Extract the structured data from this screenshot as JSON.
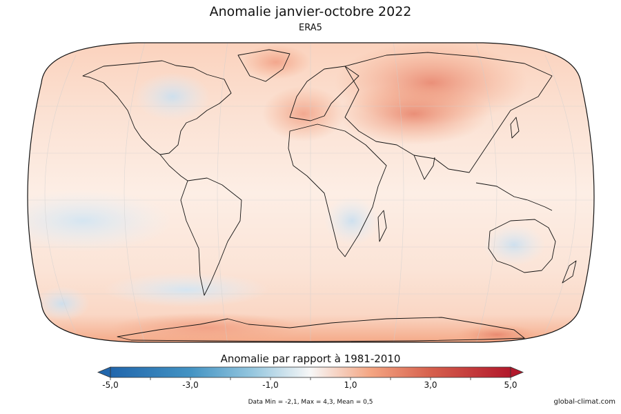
{
  "title": "Anomalie janvier-octobre 2022",
  "subtitle": "ERA5",
  "colorbar": {
    "title": "Anomalie par rapport à 1981-2010",
    "ticks": [
      "-5,0",
      "-3,0",
      "-1,0",
      "1,0",
      "3,0",
      "5,0"
    ],
    "min": -5,
    "max": 5,
    "colors": {
      "strong_cold": "#2166ac",
      "cold": "#6aaed6",
      "neutral": "#f7f7f7",
      "warm": "#f4a582",
      "strong_warm": "#b2182b"
    }
  },
  "stats": "Data Min = -2,1, Max = 4,3, Mean = 0,5",
  "credit": "global-climat.com",
  "map": {
    "projection": "robinson",
    "grid": true,
    "background_tint": "#fde5d8"
  }
}
